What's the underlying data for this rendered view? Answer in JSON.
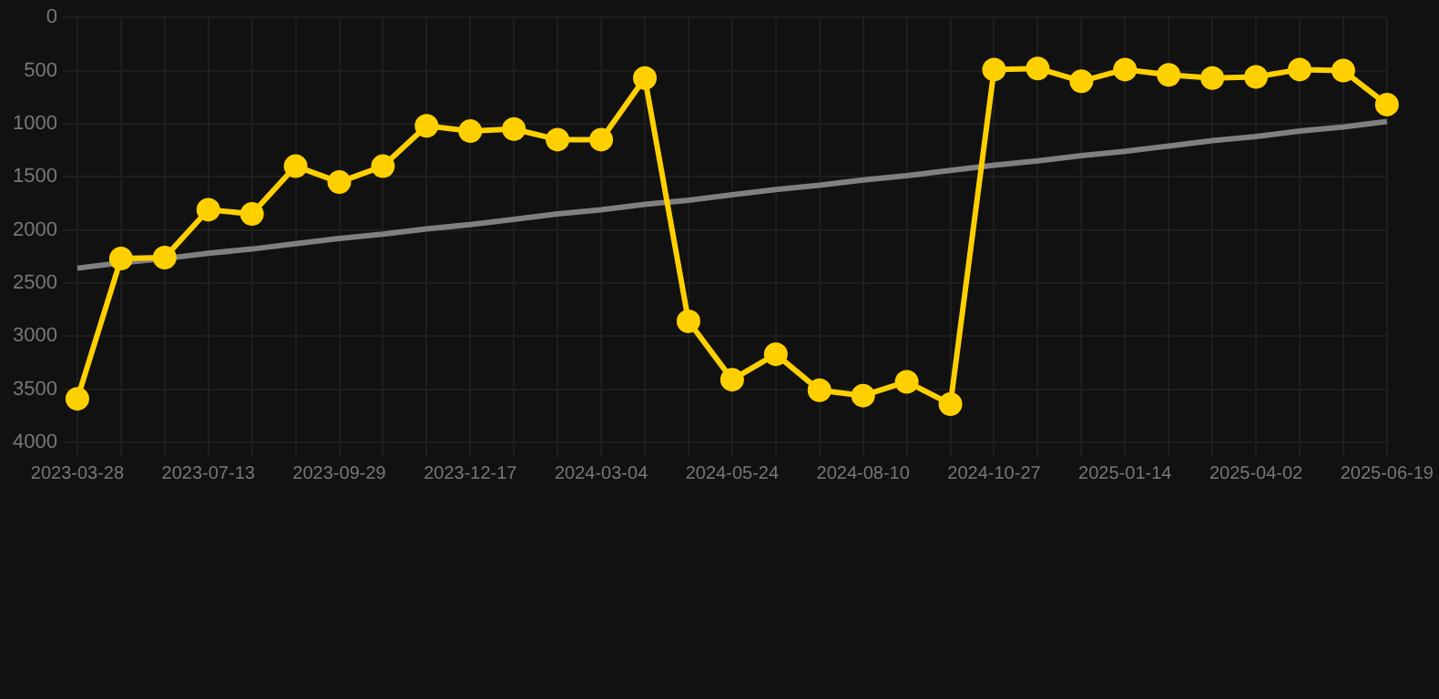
{
  "chart_data": {
    "type": "line",
    "categories": [
      "2023-03-28",
      null,
      null,
      "2023-07-13",
      null,
      null,
      "2023-09-29",
      null,
      null,
      "2023-12-17",
      null,
      null,
      "2024-03-04",
      null,
      null,
      "2024-05-24",
      null,
      null,
      "2024-08-10",
      null,
      null,
      "2024-10-27",
      null,
      null,
      "2025-01-14",
      null,
      null,
      "2025-04-02",
      null,
      null,
      "2025-06-19"
    ],
    "series": [
      {
        "color": "#ffd000",
        "values": [
          3590,
          2270,
          2260,
          1810,
          1850,
          1400,
          1550,
          1400,
          1020,
          1070,
          1050,
          1150,
          1150,
          570,
          2860,
          3410,
          3170,
          3510,
          3560,
          3430,
          3640,
          490,
          480,
          600,
          490,
          540,
          570,
          560,
          490,
          500,
          820
        ]
      },
      {
        "type": "line",
        "color": "#808080",
        "marker": "none",
        "values": [
          2360,
          2310,
          2270,
          2220,
          2180,
          2130,
          2080,
          2040,
          1990,
          1950,
          1900,
          1850,
          1810,
          1760,
          1720,
          1670,
          1620,
          1580,
          1530,
          1490,
          1440,
          1390,
          1350,
          1300,
          1260,
          1210,
          1160,
          1120,
          1070,
          1030,
          980
        ]
      }
    ],
    "ylim": [
      4000,
      0
    ],
    "yticks": [
      0,
      500,
      1000,
      1500,
      2000,
      2500,
      3000,
      3500,
      4000
    ],
    "grid": true,
    "legend": false,
    "marker": "circle",
    "line_style": "solid"
  }
}
